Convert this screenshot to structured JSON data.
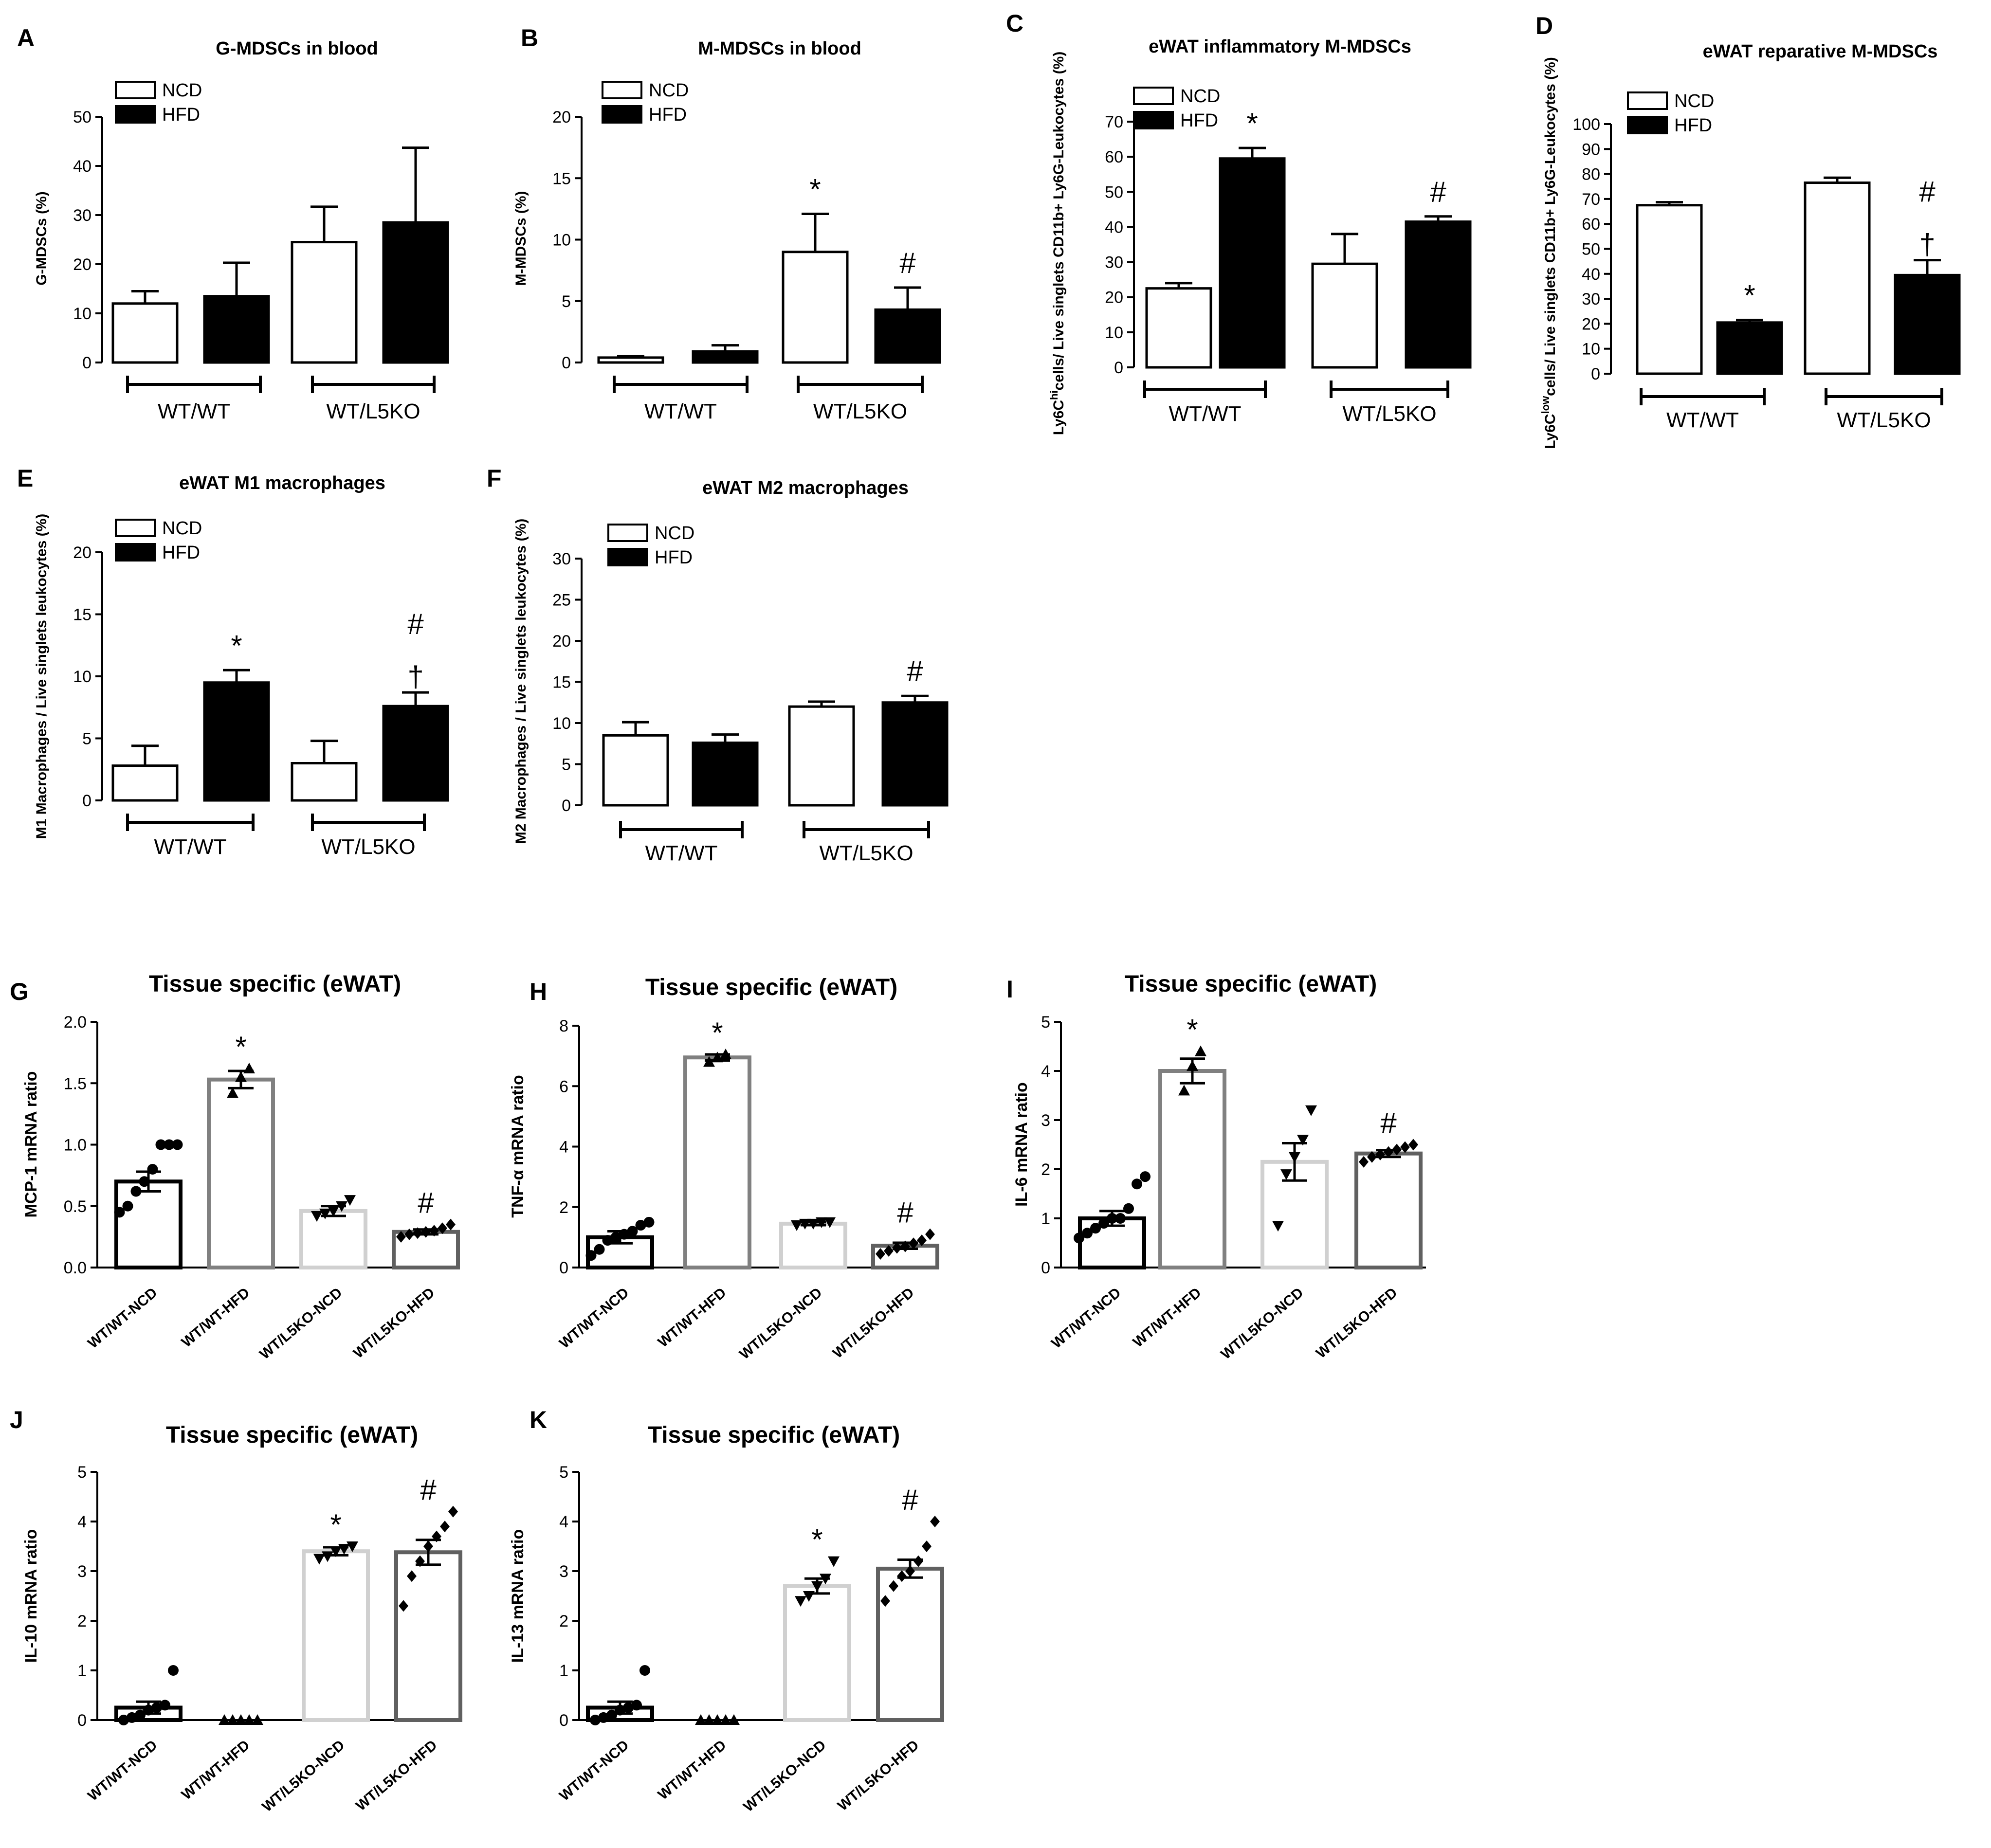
{
  "figure": {
    "description_free": true
  },
  "colors": {
    "ncd_fill": "#ffffff",
    "hfd_fill": "#000000",
    "stroke": "#000000",
    "wt_ncd": "#000000",
    "wt_hfd": "#808080",
    "l5_ncd": "#d0d0d0",
    "l5_hfd": "#606060"
  },
  "chart_data": [
    {
      "id": "A",
      "panel_label": "A",
      "type": "bar",
      "title": "G-MDSCs in blood",
      "ylabel": "G-MDSCs (%)",
      "ylim": [
        0,
        50
      ],
      "yticks": [
        0,
        10,
        20,
        30,
        40,
        50
      ],
      "groups": [
        "WT/WT",
        "WT/L5KO"
      ],
      "legend": [
        "NCD",
        "HFD"
      ],
      "series": [
        {
          "name": "NCD",
          "values": [
            12,
            24.5
          ],
          "errors": [
            2.5,
            7.2
          ]
        },
        {
          "name": "HFD",
          "values": [
            13.5,
            28.5
          ],
          "errors": [
            6.8,
            15.2
          ]
        }
      ],
      "annotations": []
    },
    {
      "id": "B",
      "panel_label": "B",
      "type": "bar",
      "title": "M-MDSCs in blood",
      "ylabel": "M-MDSCs (%)",
      "ylim": [
        0,
        20
      ],
      "yticks": [
        0,
        5,
        10,
        15,
        20
      ],
      "groups": [
        "WT/WT",
        "WT/L5KO"
      ],
      "legend": [
        "NCD",
        "HFD"
      ],
      "series": [
        {
          "name": "NCD",
          "values": [
            0.4,
            9
          ],
          "errors": [
            0.1,
            3.1
          ]
        },
        {
          "name": "HFD",
          "values": [
            0.9,
            4.3
          ],
          "errors": [
            0.5,
            1.8
          ]
        }
      ],
      "annotations": [
        {
          "series": "NCD",
          "group": 1,
          "text": "*"
        },
        {
          "series": "HFD",
          "group": 1,
          "text": "#"
        }
      ]
    },
    {
      "id": "C",
      "panel_label": "C",
      "type": "bar",
      "title": "eWAT inflammatory M-MDSCs",
      "ylabel_parts": [
        "Ly6C",
        "hi",
        "cells/ Live singlets CD11b+ Ly6G-Leukocytes (%)"
      ],
      "ylim": [
        0,
        70
      ],
      "yticks": [
        0,
        10,
        20,
        30,
        40,
        50,
        60,
        70
      ],
      "groups": [
        "WT/WT",
        "WT/L5KO"
      ],
      "legend": [
        "NCD",
        "HFD"
      ],
      "series": [
        {
          "name": "NCD",
          "values": [
            22.5,
            29.5
          ],
          "errors": [
            1.5,
            8.5
          ]
        },
        {
          "name": "HFD",
          "values": [
            59.5,
            41.5
          ],
          "errors": [
            3,
            1.5
          ]
        }
      ],
      "annotations": [
        {
          "series": "HFD",
          "group": 0,
          "text": "*"
        },
        {
          "series": "HFD",
          "group": 1,
          "text": "#"
        }
      ]
    },
    {
      "id": "D",
      "panel_label": "D",
      "type": "bar",
      "title": "eWAT reparative M-MDSCs",
      "ylabel_parts": [
        "Ly6C",
        "low",
        "cells/ Live singlets CD11b+ Ly6G-Leukocytes (%)"
      ],
      "ylim": [
        0,
        100
      ],
      "yticks": [
        0,
        10,
        20,
        30,
        40,
        50,
        60,
        70,
        80,
        90,
        100
      ],
      "groups": [
        "WT/WT",
        "WT/L5KO"
      ],
      "legend": [
        "NCD",
        "HFD"
      ],
      "series": [
        {
          "name": "NCD",
          "values": [
            67.5,
            76.5
          ],
          "errors": [
            1.2,
            2
          ]
        },
        {
          "name": "HFD",
          "values": [
            20.5,
            39.5
          ],
          "errors": [
            1,
            6
          ]
        }
      ],
      "annotations": [
        {
          "series": "HFD",
          "group": 0,
          "text": "*"
        },
        {
          "series": "HFD",
          "group": 1,
          "text": "#"
        },
        {
          "series": "HFD",
          "group": 1,
          "text": "†"
        }
      ]
    },
    {
      "id": "E",
      "panel_label": "E",
      "type": "bar",
      "title": "eWAT  M1 macrophages",
      "ylabel": "M1 Macrophages / Live singlets leukocytes (%)",
      "ylim": [
        0,
        20
      ],
      "yticks": [
        0,
        5,
        10,
        15,
        20
      ],
      "groups": [
        "WT/WT",
        "WT/L5KO"
      ],
      "legend": [
        "NCD",
        "HFD"
      ],
      "series": [
        {
          "name": "NCD",
          "values": [
            2.8,
            3
          ],
          "errors": [
            1.6,
            1.8
          ]
        },
        {
          "name": "HFD",
          "values": [
            9.5,
            7.6
          ],
          "errors": [
            1,
            1.1
          ]
        }
      ],
      "annotations": [
        {
          "series": "HFD",
          "group": 0,
          "text": "*"
        },
        {
          "series": "HFD",
          "group": 1,
          "text": "#"
        },
        {
          "series": "HFD",
          "group": 1,
          "text": "†"
        }
      ]
    },
    {
      "id": "F",
      "panel_label": "F",
      "type": "bar",
      "title": "eWAT  M2 macrophages",
      "ylabel": "M2 Macrophages / Live singlets leukocytes (%)",
      "ylim": [
        0,
        30
      ],
      "yticks": [
        0,
        5,
        10,
        15,
        20,
        25,
        30
      ],
      "groups": [
        "WT/WT",
        "WT/L5KO"
      ],
      "legend": [
        "NCD",
        "HFD"
      ],
      "series": [
        {
          "name": "NCD",
          "values": [
            8.5,
            12
          ],
          "errors": [
            1.6,
            0.6
          ]
        },
        {
          "name": "HFD",
          "values": [
            7.6,
            12.5
          ],
          "errors": [
            1,
            0.8
          ]
        }
      ],
      "annotations": [
        {
          "series": "HFD",
          "group": 1,
          "text": "#"
        }
      ]
    },
    {
      "id": "G",
      "panel_label": "G",
      "type": "bar-scatter",
      "title": "Tissue specific (eWAT)",
      "ylabel": "MCP-1 mRNA ratio",
      "ylim": [
        0,
        2
      ],
      "yticks": [
        "0.0",
        "0.5",
        "1.0",
        "1.5",
        "2.0"
      ],
      "ytick_values": [
        0,
        0.5,
        1,
        1.5,
        2
      ],
      "categories": [
        "WT/WT-NCD",
        "WT/WT-HFD",
        "WT/L5KO-NCD",
        "WT/L5KO-HFD"
      ],
      "values": [
        0.7,
        1.53,
        0.46,
        0.29
      ],
      "errors": [
        0.08,
        0.07,
        0.04,
        0.02
      ],
      "points": [
        [
          0.45,
          0.5,
          0.62,
          0.7,
          0.8,
          1.0,
          1.0,
          1.0
        ],
        [
          1.42,
          1.55,
          1.62
        ],
        [
          0.42,
          0.44,
          0.46,
          0.5,
          0.55
        ],
        [
          0.25,
          0.27,
          0.28,
          0.29,
          0.3,
          0.32,
          0.35
        ]
      ],
      "markers": [
        "circle",
        "triangle-up",
        "triangle-down",
        "diamond"
      ],
      "annotations": [
        {
          "index": 1,
          "text": "*"
        },
        {
          "index": 3,
          "text": "#"
        }
      ]
    },
    {
      "id": "H",
      "panel_label": "H",
      "type": "bar-scatter",
      "title": "Tissue specific (eWAT)",
      "ylabel": "TNF-α mRNA ratio",
      "ylim": [
        0,
        8
      ],
      "yticks": [
        "0",
        "2",
        "4",
        "6",
        "8"
      ],
      "ytick_values": [
        0,
        2,
        4,
        6,
        8
      ],
      "categories": [
        "WT/WT-NCD",
        "WT/WT-HFD",
        "WT/L5KO-NCD",
        "WT/L5KO-HFD"
      ],
      "values": [
        1,
        6.95,
        1.45,
        0.72
      ],
      "errors": [
        0.2,
        0.1,
        0.05,
        0.1
      ],
      "points": [
        [
          0.4,
          0.6,
          0.9,
          1.0,
          1.1,
          1.2,
          1.4,
          1.5
        ],
        [
          6.8,
          6.95,
          7.05
        ],
        [
          1.4,
          1.45,
          1.45,
          1.5,
          1.5
        ],
        [
          0.45,
          0.55,
          0.65,
          0.7,
          0.8,
          0.9,
          1.1
        ]
      ],
      "markers": [
        "circle",
        "triangle-up",
        "triangle-down",
        "diamond"
      ],
      "annotations": [
        {
          "index": 1,
          "text": "*"
        },
        {
          "index": 3,
          "text": "#"
        }
      ]
    },
    {
      "id": "I",
      "panel_label": "I",
      "type": "bar-scatter",
      "title": "Tissue specific (eWAT)",
      "ylabel": "IL-6 mRNA ratio",
      "ylim": [
        0,
        5
      ],
      "yticks": [
        "0",
        "1",
        "2",
        "3",
        "4",
        "5"
      ],
      "ytick_values": [
        0,
        1,
        2,
        3,
        4,
        5
      ],
      "categories": [
        "WT/WT-NCD",
        "WT/WT-HFD",
        "WT/L5KO-NCD",
        "WT/L5KO-HFD"
      ],
      "values": [
        1,
        4,
        2.15,
        2.32
      ],
      "errors": [
        0.15,
        0.25,
        0.38,
        0.07
      ],
      "points": [
        [
          0.6,
          0.7,
          0.8,
          0.9,
          1.0,
          1.0,
          1.2,
          1.7,
          1.85
        ],
        [
          3.6,
          4.1,
          4.4
        ],
        [
          0.85,
          1.9,
          2.25,
          2.6,
          3.2
        ],
        [
          2.15,
          2.25,
          2.3,
          2.35,
          2.4,
          2.45,
          2.5
        ]
      ],
      "markers": [
        "circle",
        "triangle-up",
        "triangle-down",
        "diamond"
      ],
      "annotations": [
        {
          "index": 1,
          "text": "*"
        },
        {
          "index": 3,
          "text": "#"
        }
      ]
    },
    {
      "id": "J",
      "panel_label": "J",
      "type": "bar-scatter",
      "title": "Tissue specific (eWAT)",
      "ylabel": "IL-10 mRNA ratio",
      "ylim": [
        0,
        5
      ],
      "yticks": [
        "0",
        "1",
        "2",
        "3",
        "4",
        "5"
      ],
      "ytick_values": [
        0,
        1,
        2,
        3,
        4,
        5
      ],
      "categories": [
        "WT/WT-NCD",
        "WT/WT-HFD",
        "WT/L5KO-NCD",
        "WT/L5KO-HFD"
      ],
      "values": [
        0.25,
        0,
        3.4,
        3.38
      ],
      "errors": [
        0.12,
        0,
        0.08,
        0.25
      ],
      "points": [
        [
          0.0,
          0.05,
          0.1,
          0.2,
          0.25,
          0.3,
          1.0
        ],
        [
          0,
          0,
          0,
          0,
          0
        ],
        [
          3.25,
          3.3,
          3.4,
          3.45,
          3.5
        ],
        [
          2.3,
          2.9,
          3.2,
          3.5,
          3.7,
          3.9,
          4.2
        ]
      ],
      "markers": [
        "circle",
        "triangle-up",
        "triangle-down",
        "diamond"
      ],
      "annotations": [
        {
          "index": 2,
          "text": "*"
        },
        {
          "index": 3,
          "text": "#"
        }
      ]
    },
    {
      "id": "K",
      "panel_label": "K",
      "type": "bar-scatter",
      "title": "Tissue specific (eWAT)",
      "ylabel": "IL-13 mRNA ratio",
      "ylim": [
        0,
        5
      ],
      "yticks": [
        "0",
        "1",
        "2",
        "3",
        "4",
        "5"
      ],
      "ytick_values": [
        0,
        1,
        2,
        3,
        4,
        5
      ],
      "categories": [
        "WT/WT-NCD",
        "WT/WT-HFD",
        "WT/L5KO-NCD",
        "WT/L5KO-HFD"
      ],
      "values": [
        0.25,
        0,
        2.7,
        3.05
      ],
      "errors": [
        0.12,
        0,
        0.15,
        0.18
      ],
      "points": [
        [
          0.0,
          0.05,
          0.1,
          0.2,
          0.25,
          0.3,
          1.0
        ],
        [
          0,
          0,
          0,
          0,
          0
        ],
        [
          2.4,
          2.5,
          2.7,
          2.85,
          3.2
        ],
        [
          2.4,
          2.7,
          2.9,
          3.0,
          3.2,
          3.5,
          4.0
        ]
      ],
      "markers": [
        "circle",
        "triangle-up",
        "triangle-down",
        "diamond"
      ],
      "annotations": [
        {
          "index": 2,
          "text": "*"
        },
        {
          "index": 3,
          "text": "#"
        }
      ]
    }
  ]
}
